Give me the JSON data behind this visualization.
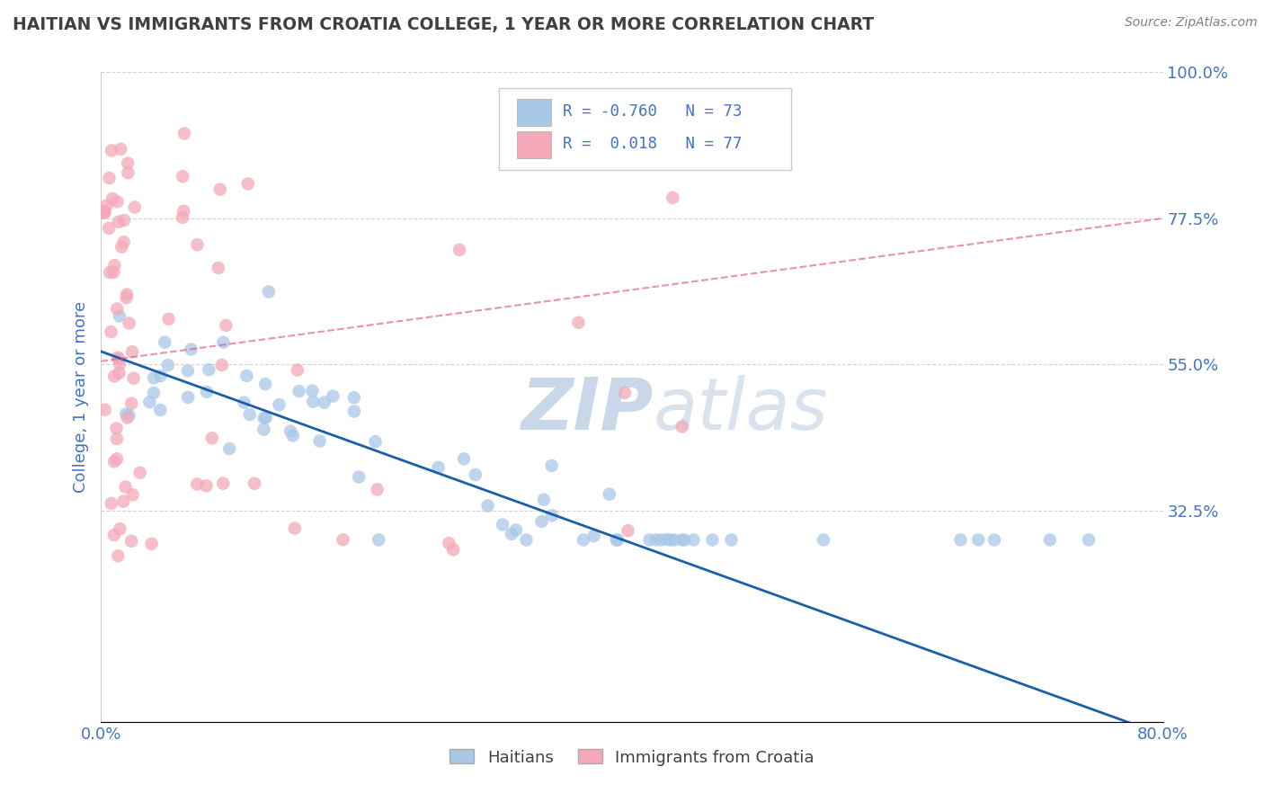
{
  "title": "HAITIAN VS IMMIGRANTS FROM CROATIA COLLEGE, 1 YEAR OR MORE CORRELATION CHART",
  "source": "Source: ZipAtlas.com",
  "ylabel": "College, 1 year or more",
  "legend_labels": [
    "Haitians",
    "Immigrants from Croatia"
  ],
  "blue_R": -0.76,
  "blue_N": 73,
  "pink_R": 0.018,
  "pink_N": 77,
  "blue_color": "#a8c8e8",
  "pink_color": "#f4a8b8",
  "blue_line_color": "#1a5fa8",
  "pink_line_color": "#e05878",
  "background_color": "#ffffff",
  "grid_color": "#c8c8c8",
  "watermark_color": "#c8d8e8",
  "title_color": "#404040",
  "tick_label_color": "#4472c4",
  "source_color": "#808080",
  "xlim": [
    0.0,
    0.8
  ],
  "ylim": [
    0.0,
    1.0
  ],
  "ytick_positions": [
    0.325,
    0.55,
    0.775,
    1.0
  ],
  "ytick_labels": [
    "32.5%",
    "55.0%",
    "77.5%",
    "100.0%"
  ],
  "blue_line_x": [
    0.0,
    0.8
  ],
  "blue_line_y": [
    0.57,
    -0.02
  ],
  "pink_line_x": [
    0.0,
    0.8
  ],
  "pink_line_y": [
    0.555,
    0.775
  ]
}
